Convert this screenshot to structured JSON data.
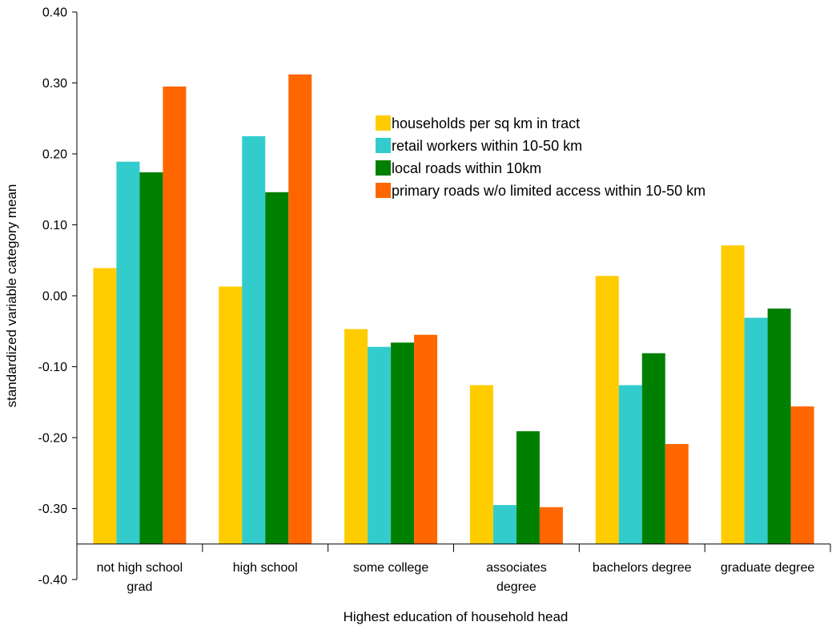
{
  "chart_data": {
    "type": "bar",
    "title": "",
    "xlabel": "Highest education of household head",
    "ylabel": "standardized variable category mean",
    "ylim": [
      -0.4,
      0.4
    ],
    "ytick_labels": [
      "-0.40",
      "-0.30",
      "-0.20",
      "-0.10",
      "0.00",
      "0.10",
      "0.20",
      "0.30",
      "0.40"
    ],
    "ytick_values": [
      -0.4,
      -0.3,
      -0.2,
      -0.1,
      0.0,
      0.1,
      0.2,
      0.3,
      0.4
    ],
    "bar_base": -0.35,
    "grid": false,
    "legend_position": "top-right",
    "categories": [
      [
        "not high school",
        "grad"
      ],
      [
        "high school"
      ],
      [
        "some college"
      ],
      [
        "associates",
        "degree"
      ],
      [
        "bachelors degree"
      ],
      [
        "graduate degree"
      ]
    ],
    "series": [
      {
        "name": "households per sq km in tract",
        "color": "#FFCC00",
        "values": [
          0.039,
          0.013,
          -0.047,
          -0.126,
          0.028,
          0.071
        ]
      },
      {
        "name": "retail workers within 10-50 km",
        "color": "#33CCCC",
        "values": [
          0.189,
          0.225,
          -0.072,
          -0.295,
          -0.126,
          -0.031
        ]
      },
      {
        "name": "local roads within 10km",
        "color": "#008000",
        "values": [
          0.174,
          0.146,
          -0.066,
          -0.191,
          -0.081,
          -0.018
        ]
      },
      {
        "name": "primary roads w/o limited access within 10-50 km",
        "color": "#FF6600",
        "values": [
          0.295,
          0.312,
          -0.055,
          -0.298,
          -0.209,
          -0.156
        ]
      }
    ]
  }
}
